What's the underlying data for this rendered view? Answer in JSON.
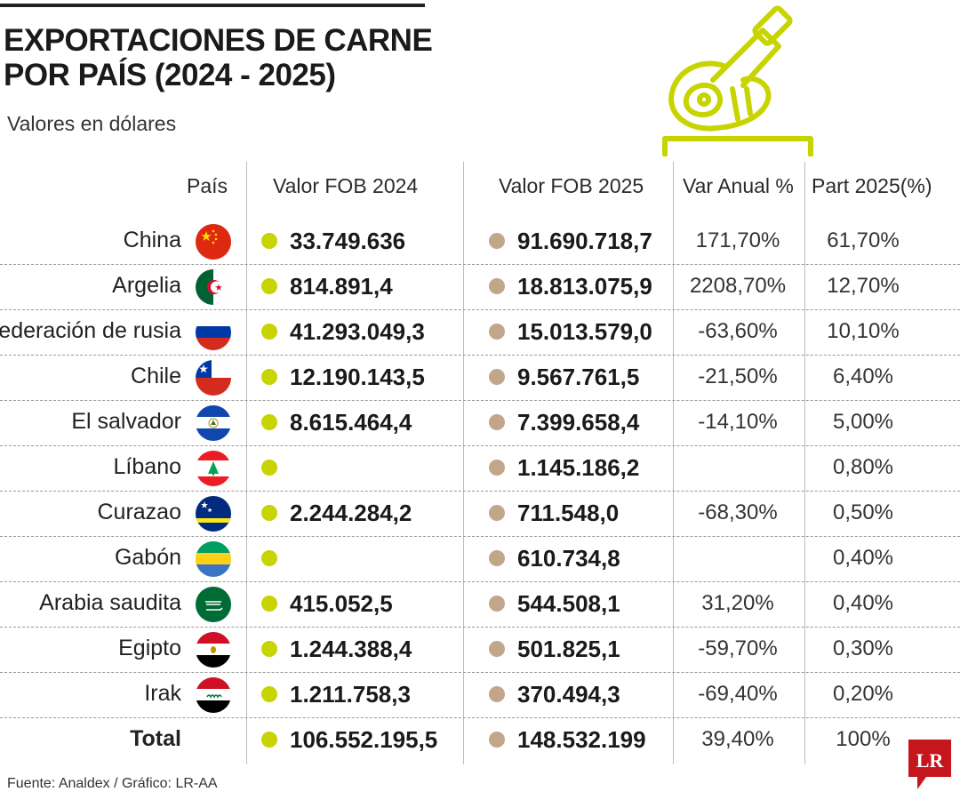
{
  "header": {
    "title_line1": "EXPORTACIONES DE CARNE",
    "title_line2": "POR PAÍS (2024 - 2025)",
    "subtitle": "Valores en dólares"
  },
  "columns": {
    "country": "País",
    "fob2024": "Valor FOB 2024",
    "fob2025": "Valor FOB 2025",
    "var": "Var Anual %",
    "part": "Part 2025(%)"
  },
  "colors": {
    "series_2024": "#c8d400",
    "series_2025": "#c2a68a",
    "icon": "#c8d400",
    "brand": "#c4161c"
  },
  "chart_data": {
    "type": "table",
    "title": "EXPORTACIONES DE CARNE POR PAÍS (2024 - 2025)",
    "subtitle": "Valores en dólares",
    "columns": [
      "País",
      "Valor FOB 2024",
      "Valor FOB 2025",
      "Var Anual %",
      "Part 2025(%)"
    ],
    "rows": [
      {
        "country": "China",
        "flag": "china-flag-icon",
        "fob2024": "33.749.636",
        "fob2025": "91.690.718,7",
        "var": "171,70%",
        "part": "61,70%"
      },
      {
        "country": "Argelia",
        "flag": "algeria-flag-icon",
        "fob2024": "814.891,4",
        "fob2025": "18.813.075,9",
        "var": "2208,70%",
        "part": "12,70%"
      },
      {
        "country": "Federación de rusia",
        "flag": "russia-flag-icon",
        "fob2024": "41.293.049,3",
        "fob2025": "15.013.579,0",
        "var": "-63,60%",
        "part": "10,10%"
      },
      {
        "country": "Chile",
        "flag": "chile-flag-icon",
        "fob2024": "12.190.143,5",
        "fob2025": "9.567.761,5",
        "var": "-21,50%",
        "part": "6,40%"
      },
      {
        "country": "El salvador",
        "flag": "el-salvador-flag-icon",
        "fob2024": "8.615.464,4",
        "fob2025": "7.399.658,4",
        "var": "-14,10%",
        "part": "5,00%"
      },
      {
        "country": "Líbano",
        "flag": "lebanon-flag-icon",
        "fob2024": "",
        "fob2025": "1.145.186,2",
        "var": "",
        "part": "0,80%"
      },
      {
        "country": "Curazao",
        "flag": "curacao-flag-icon",
        "fob2024": "2.244.284,2",
        "fob2025": "711.548,0",
        "var": "-68,30%",
        "part": "0,50%"
      },
      {
        "country": "Gabón",
        "flag": "gabon-flag-icon",
        "fob2024": "",
        "fob2025": "610.734,8",
        "var": "",
        "part": "0,40%"
      },
      {
        "country": "Arabia saudita",
        "flag": "saudi-arabia-flag-icon",
        "fob2024": "415.052,5",
        "fob2025": "544.508,1",
        "var": "31,20%",
        "part": "0,40%"
      },
      {
        "country": "Egipto",
        "flag": "egypt-flag-icon",
        "fob2024": "1.244.388,4",
        "fob2025": "501.825,1",
        "var": "-59,70%",
        "part": "0,30%"
      },
      {
        "country": "Irak",
        "flag": "iraq-flag-icon",
        "fob2024": "1.211.758,3",
        "fob2025": "370.494,3",
        "var": "-69,40%",
        "part": "0,20%"
      }
    ],
    "total": {
      "label": "Total",
      "fob2024": "106.552.195,5",
      "fob2025": "148.532.199",
      "var": "39,40%",
      "part": "100%"
    }
  },
  "footer": {
    "source": "Fuente: Analdex / Gráfico: LR-AA",
    "logo_text": "LR"
  }
}
